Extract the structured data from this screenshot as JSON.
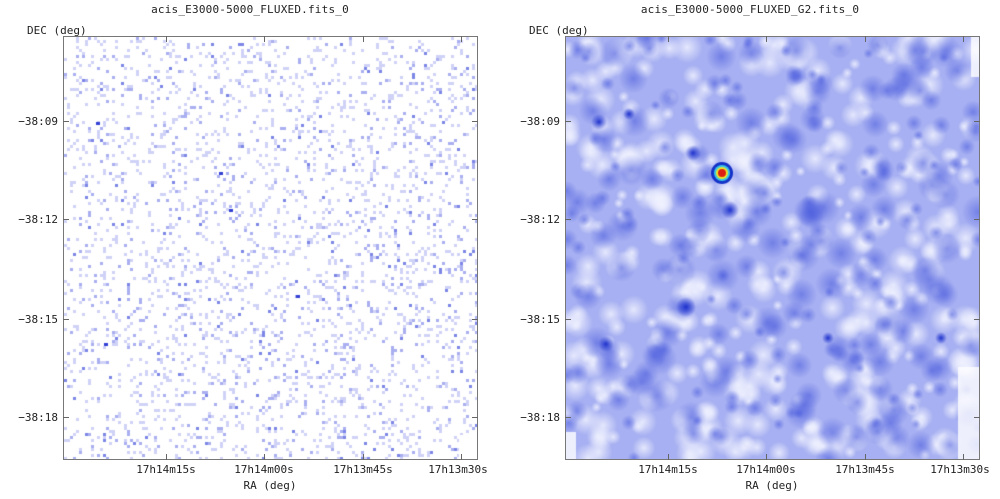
{
  "panels": [
    {
      "title": "acis_E3000-5000_FLUXED.fits_0",
      "ylabel": "DEC (deg)",
      "xlabel": "RA (deg)",
      "yticks": [
        "−38:09",
        "−38:12",
        "−38:15",
        "−38:18"
      ],
      "xticks": [
        "17h14m15s",
        "17h14m00s",
        "17h13m45s",
        "17h13m30s"
      ],
      "style": "raw"
    },
    {
      "title": "acis_E3000-5000_FLUXED_G2.fits_0",
      "ylabel": "DEC (deg)",
      "xlabel": "RA (deg)",
      "yticks": [
        "−38:09",
        "−38:12",
        "−38:15",
        "−38:18"
      ],
      "xticks": [
        "17h14m15s",
        "17h14m00s",
        "17h13m45s",
        "17h13m30s"
      ],
      "style": "smoothed"
    }
  ],
  "colors": {
    "low": "#c8ccf4",
    "mid": "#4a5ae0",
    "high": "#1830c8",
    "peak": "#d01010"
  }
}
